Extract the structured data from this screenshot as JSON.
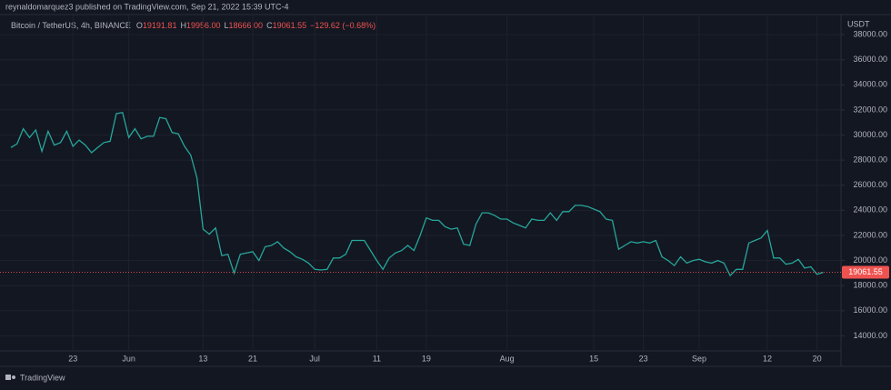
{
  "header": {
    "published": "reynaldomarquez3 published on TradingView.com, Sep 21, 2022 15:39 UTC-4",
    "brand": "TradingView"
  },
  "chart_data": {
    "type": "line",
    "symbol": "Bitcoin / TetherUS, 4h, BINANCE",
    "ohlc": [
      {
        "key": "O",
        "text": "19191.81"
      },
      {
        "key": "H",
        "text": "19956.00"
      },
      {
        "key": "L",
        "text": "18666.00"
      },
      {
        "key": "C",
        "text": "19061.55"
      }
    ],
    "change": "−129.62 (−0.68%)",
    "y_axis_label": "USDT",
    "color": "#26a69a",
    "categories": [
      null,
      null,
      null,
      null,
      null,
      null,
      null,
      null,
      null,
      null,
      "23",
      null,
      null,
      null,
      null,
      null,
      null,
      null,
      null,
      "Jun",
      null,
      null,
      null,
      null,
      null,
      null,
      null,
      null,
      null,
      null,
      null,
      "13",
      null,
      null,
      null,
      null,
      null,
      null,
      null,
      "21",
      null,
      null,
      null,
      null,
      null,
      null,
      null,
      null,
      null,
      "Jul",
      null,
      null,
      null,
      null,
      null,
      null,
      null,
      null,
      null,
      "11",
      null,
      null,
      null,
      null,
      null,
      null,
      null,
      "19",
      null,
      null,
      null,
      null,
      null,
      null,
      null,
      null,
      null,
      null,
      null,
      null,
      "Aug",
      null,
      null,
      null,
      null,
      null,
      null,
      null,
      null,
      null,
      null,
      null,
      null,
      null,
      "15",
      null,
      null,
      null,
      null,
      null,
      null,
      null,
      "23",
      null,
      null,
      null,
      null,
      null,
      null,
      null,
      null,
      "Sep",
      null,
      null,
      null,
      null,
      null,
      null,
      null,
      null,
      null,
      null,
      "12",
      null,
      null,
      null,
      null,
      null,
      null,
      null,
      "20",
      null
    ],
    "values": [
      29000,
      29300,
      30500,
      29800,
      30400,
      28700,
      30300,
      29200,
      29400,
      30300,
      29100,
      29600,
      29200,
      28600,
      29000,
      29400,
      29500,
      31700,
      31800,
      29800,
      30500,
      29700,
      29900,
      29900,
      31400,
      31300,
      30200,
      30100,
      29100,
      28400,
      26600,
      22500,
      22100,
      22600,
      20400,
      20500,
      19000,
      20500,
      20600,
      20700,
      20000,
      21100,
      21200,
      21500,
      21000,
      20700,
      20300,
      20100,
      19800,
      19300,
      19250,
      19300,
      20200,
      20200,
      20500,
      21600,
      21600,
      21600,
      20800,
      20000,
      19300,
      20200,
      20600,
      20800,
      21200,
      20800,
      22000,
      23400,
      23200,
      23200,
      22700,
      22500,
      22600,
      21300,
      21200,
      22900,
      23800,
      23800,
      23600,
      23300,
      23300,
      23000,
      22800,
      22600,
      23300,
      23200,
      23200,
      23800,
      23200,
      23900,
      23900,
      24400,
      24400,
      24300,
      24100,
      23900,
      23300,
      23200,
      20900,
      21200,
      21500,
      21400,
      21500,
      21400,
      21600,
      20300,
      20000,
      19600,
      20300,
      19800,
      20000,
      20100,
      19900,
      19800,
      20000,
      19800,
      18800,
      19300,
      19300,
      21400,
      21600,
      21800,
      22400,
      20200,
      20200,
      19700,
      19800,
      20100,
      19400,
      19500,
      18900,
      19061.55
    ],
    "ylim": [
      12800,
      39600
    ],
    "yticks": [
      {
        "value": 14000,
        "label": "14000.00"
      },
      {
        "value": 16000,
        "label": "16000.00"
      },
      {
        "value": 18000,
        "label": "18000.00"
      },
      {
        "value": 20000,
        "label": "20000.00"
      },
      {
        "value": 22000,
        "label": "22000.00"
      },
      {
        "value": 24000,
        "label": "24000.00"
      },
      {
        "value": 26000,
        "label": "26000.00"
      },
      {
        "value": 28000,
        "label": "28000.00"
      },
      {
        "value": 30000,
        "label": "30000.00"
      },
      {
        "value": 32000,
        "label": "32000.00"
      },
      {
        "value": 34000,
        "label": "34000.00"
      },
      {
        "value": 36000,
        "label": "36000.00"
      },
      {
        "value": 38000,
        "label": "38000.00"
      }
    ],
    "grid": true
  }
}
